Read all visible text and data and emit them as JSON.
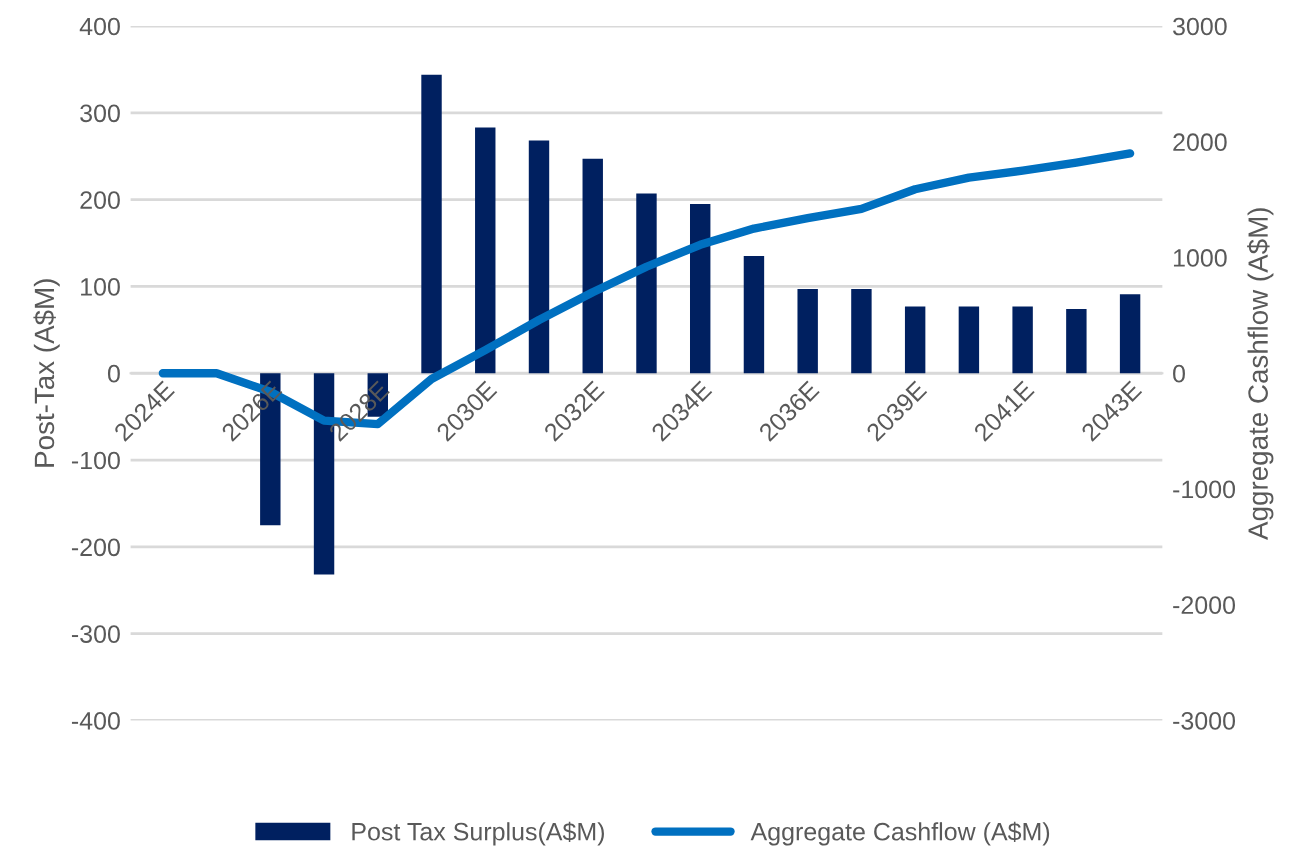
{
  "chart_data": {
    "type": "bar",
    "ylabel": "Post-Tax (A$M)",
    "y2label": "Aggregate Cashflow (A$M)",
    "categories": [
      "2024E",
      null,
      "2026E",
      null,
      "2028E",
      null,
      "2030E",
      null,
      "2032E",
      null,
      "2034E",
      null,
      "2036E",
      null,
      "2039E",
      null,
      "2041E",
      null,
      "2043E"
    ],
    "series": [
      {
        "name": "Post Tax Surplus(A$M)",
        "color": "#002060",
        "values": [
          0,
          0,
          -175,
          -232,
          -50,
          344,
          283,
          268,
          247,
          207,
          195,
          135,
          97,
          97,
          77,
          77,
          77,
          74,
          91
        ]
      },
      {
        "name": "Aggregate Cashflow (A$M)",
        "type": "line",
        "axis": "y2",
        "color": "#0070c0",
        "values": [
          0,
          0,
          -160,
          -410,
          -440,
          -50,
          200,
          460,
          700,
          920,
          1110,
          1250,
          1340,
          1420,
          1590,
          1690,
          1750,
          1820,
          1900
        ]
      }
    ],
    "ylim": [
      -400,
      400
    ],
    "yticks": [
      -400,
      -300,
      -200,
      -100,
      0,
      100,
      200,
      300,
      400
    ],
    "y2lim": [
      -3000,
      3000
    ],
    "y2ticks": [
      -3000,
      -2000,
      -1000,
      0,
      1000,
      2000,
      3000
    ],
    "grid": "y",
    "legend": "bottom",
    "marker": "none",
    "line_style": "solid"
  }
}
